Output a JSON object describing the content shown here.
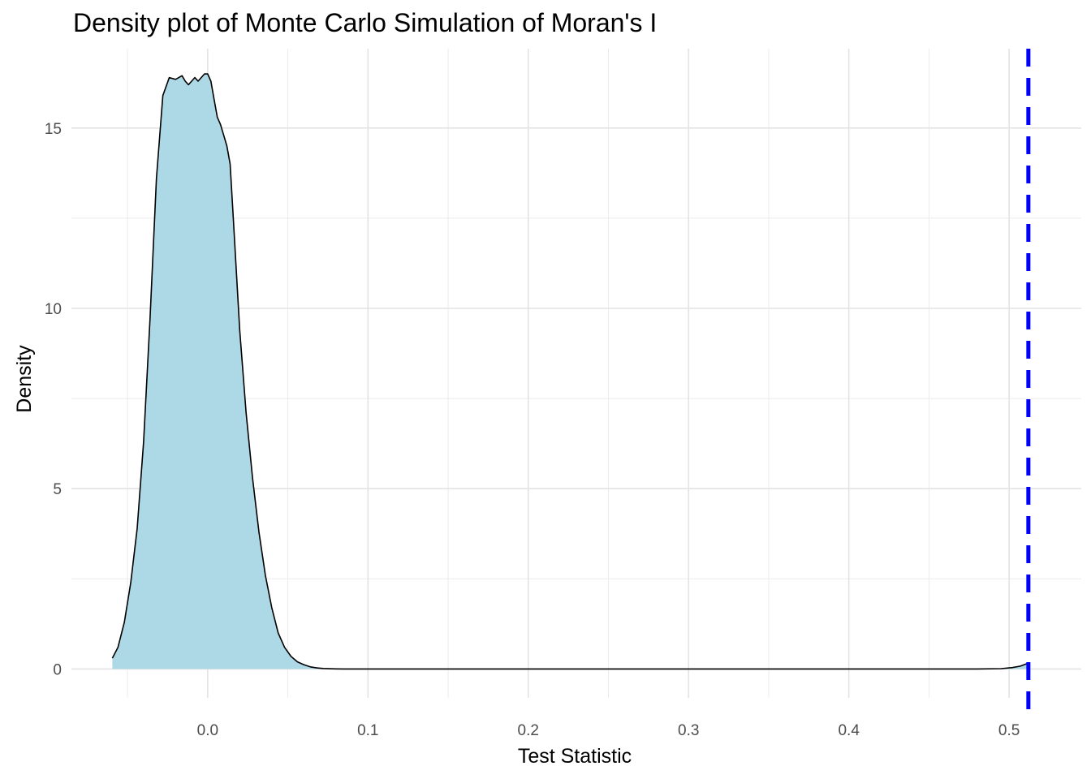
{
  "chart_data": {
    "type": "area",
    "title": "Density plot of Monte Carlo Simulation of Moran's I",
    "xlabel": "Test Statistic",
    "ylabel": "Density",
    "xlim": [
      -0.085,
      0.545
    ],
    "ylim": [
      -0.8,
      17.2
    ],
    "x_ticks": [
      0.0,
      0.1,
      0.2,
      0.3,
      0.4,
      0.5
    ],
    "x_tick_labels": [
      "0.0",
      "0.1",
      "0.2",
      "0.3",
      "0.4",
      "0.5"
    ],
    "y_ticks": [
      0,
      5,
      10,
      15
    ],
    "y_tick_labels": [
      "0",
      "5",
      "10",
      "15"
    ],
    "grid": true,
    "fill_color": "#ADD8E6",
    "line_color": "#000000",
    "vline": {
      "x": 0.512,
      "color": "#0000FF",
      "style": "dashed"
    },
    "density": {
      "x": [
        -0.0595,
        -0.056,
        -0.052,
        -0.048,
        -0.044,
        -0.04,
        -0.036,
        -0.032,
        -0.028,
        -0.024,
        -0.02,
        -0.016,
        -0.014,
        -0.012,
        -0.01,
        -0.008,
        -0.006,
        -0.004,
        -0.002,
        0.0,
        0.002,
        0.004,
        0.006,
        0.008,
        0.01,
        0.012,
        0.014,
        0.016,
        0.02,
        0.024,
        0.028,
        0.032,
        0.036,
        0.04,
        0.044,
        0.048,
        0.052,
        0.056,
        0.06,
        0.064,
        0.068,
        0.072,
        0.076,
        0.08,
        0.085,
        0.09,
        0.095,
        0.1,
        0.15,
        0.2,
        0.3,
        0.4,
        0.45,
        0.48,
        0.495,
        0.502,
        0.507,
        0.512
      ],
      "y": [
        0.3,
        0.6,
        1.3,
        2.4,
        3.9,
        6.3,
        9.7,
        13.6,
        15.9,
        16.4,
        16.35,
        16.45,
        16.3,
        16.2,
        16.3,
        16.4,
        16.3,
        16.4,
        16.5,
        16.5,
        16.3,
        15.8,
        15.3,
        15.1,
        14.8,
        14.5,
        14.0,
        12.5,
        9.4,
        7.1,
        5.3,
        3.8,
        2.6,
        1.7,
        1.0,
        0.6,
        0.35,
        0.2,
        0.12,
        0.06,
        0.03,
        0.015,
        0.008,
        0.004,
        0.002,
        0.001,
        0.0,
        0.0,
        0.0,
        0.0,
        0.0,
        0.0,
        0.0,
        0.0,
        0.01,
        0.04,
        0.08,
        0.16
      ]
    }
  }
}
